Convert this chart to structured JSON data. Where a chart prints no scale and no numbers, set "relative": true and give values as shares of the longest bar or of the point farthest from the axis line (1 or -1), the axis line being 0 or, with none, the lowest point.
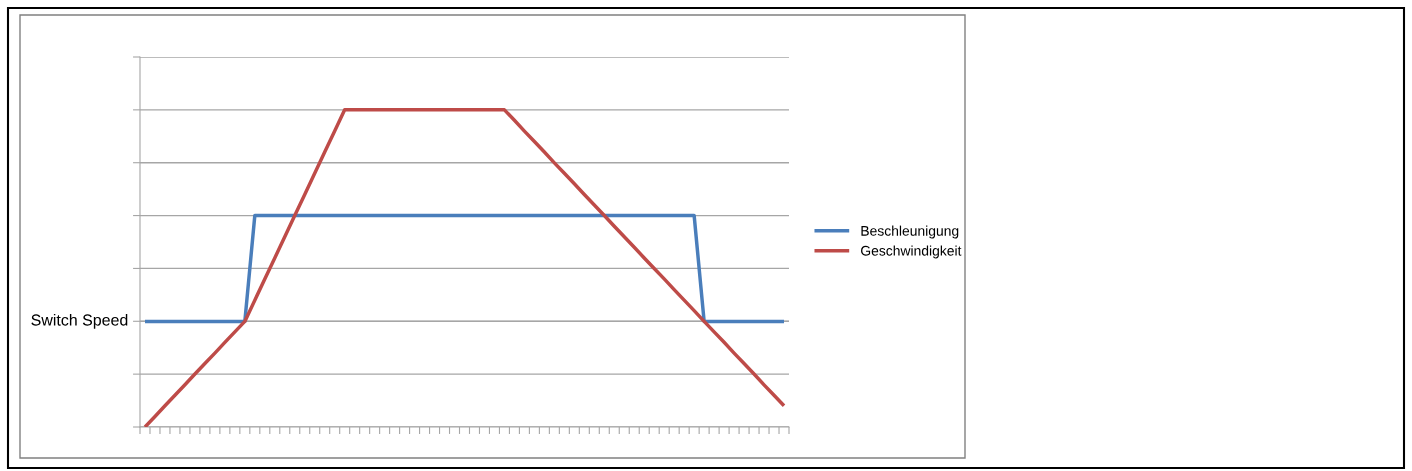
{
  "chart_data": {
    "type": "line",
    "relative": true,
    "grid": "y",
    "legend": "right",
    "marker": "none",
    "line_style": "solid",
    "categories": [
      null,
      null,
      null,
      null,
      null,
      null,
      null,
      null,
      null,
      null,
      null,
      null,
      null,
      null,
      null,
      null,
      null,
      null,
      null,
      null,
      null,
      null,
      null,
      null,
      null,
      null,
      null,
      null,
      null,
      null,
      null,
      null,
      null,
      null,
      null,
      null,
      null,
      null,
      null,
      null,
      null,
      null,
      null,
      null,
      null,
      null,
      null,
      null,
      null,
      null,
      null,
      null,
      null,
      null,
      null,
      null,
      null,
      null,
      null,
      null,
      null,
      null,
      null,
      null,
      null
    ],
    "series": [
      {
        "name": "Beschleunigung",
        "color": "#4a7ebb",
        "values": [
          0.333,
          0.333,
          0.333,
          0.333,
          0.333,
          0.333,
          0.333,
          0.333,
          0.333,
          0.333,
          0.333,
          0.667,
          0.667,
          0.667,
          0.667,
          0.667,
          0.667,
          0.667,
          0.667,
          0.667,
          0.667,
          0.667,
          0.667,
          0.667,
          0.667,
          0.667,
          0.667,
          0.667,
          0.667,
          0.667,
          0.667,
          0.667,
          0.667,
          0.667,
          0.667,
          0.667,
          0.667,
          0.667,
          0.667,
          0.667,
          0.667,
          0.667,
          0.667,
          0.667,
          0.667,
          0.667,
          0.667,
          0.667,
          0.667,
          0.667,
          0.667,
          0.667,
          0.667,
          0.667,
          0.667,
          0.667,
          0.333,
          0.333,
          0.333,
          0.333,
          0.333,
          0.333,
          0.333,
          0.333,
          0.333
        ]
      },
      {
        "name": "Geschwindigkeit",
        "color": "#be4b48",
        "values": [
          0,
          0.033,
          0.067,
          0.1,
          0.133,
          0.167,
          0.2,
          0.233,
          0.267,
          0.3,
          0.333,
          0.4,
          0.467,
          0.533,
          0.6,
          0.667,
          0.733,
          0.8,
          0.867,
          0.933,
          1,
          1,
          1,
          1,
          1,
          1,
          1,
          1,
          1,
          1,
          1,
          1,
          1,
          1,
          1,
          1,
          1,
          0.967,
          0.933,
          0.9,
          0.867,
          0.833,
          0.8,
          0.767,
          0.733,
          0.7,
          0.667,
          0.633,
          0.6,
          0.567,
          0.533,
          0.5,
          0.467,
          0.433,
          0.4,
          0.367,
          0.333,
          0.3,
          0.267,
          0.233,
          0.2,
          0.167,
          0.133,
          0.1,
          0.067
        ]
      }
    ],
    "ref_lines": [
      {
        "axis": "y",
        "value": 0.333,
        "label": "Switch Speed",
        "color": "#a6a6a6"
      }
    ]
  }
}
